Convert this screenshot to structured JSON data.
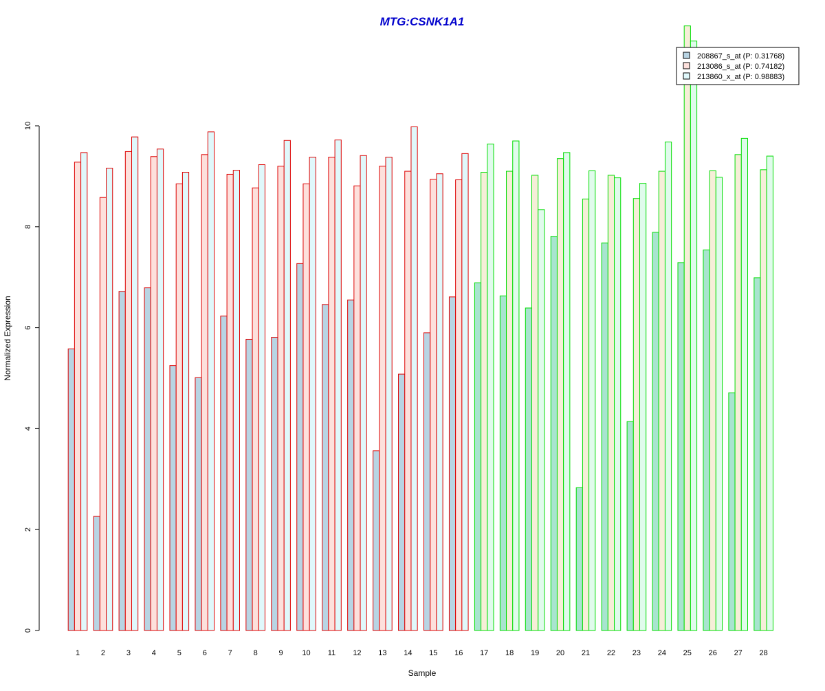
{
  "chart_data": {
    "type": "bar",
    "title": "MTG:CSNK1A1",
    "xlabel": "Sample",
    "ylabel": "Normalized Expression",
    "ylim": [
      0,
      12
    ],
    "yticks": [
      0,
      2,
      4,
      6,
      8,
      10
    ],
    "categories": [
      "1",
      "2",
      "3",
      "4",
      "5",
      "6",
      "7",
      "8",
      "9",
      "10",
      "11",
      "12",
      "13",
      "14",
      "15",
      "16",
      "17",
      "18",
      "19",
      "20",
      "21",
      "22",
      "23",
      "24",
      "25",
      "26",
      "27",
      "28"
    ],
    "series": [
      {
        "name": "208867_s_at (P: 0.31768)",
        "values": [
          5.58,
          2.26,
          6.72,
          6.79,
          5.25,
          5.01,
          6.23,
          5.77,
          5.81,
          7.27,
          6.46,
          6.55,
          3.56,
          5.08,
          5.9,
          6.61,
          6.89,
          6.63,
          6.39,
          7.81,
          2.83,
          7.68,
          4.14,
          7.89,
          7.29,
          7.54,
          4.71,
          6.99
        ]
      },
      {
        "name": "213086_s_at (P: 0.74182)",
        "values": [
          9.28,
          8.58,
          9.49,
          9.39,
          8.85,
          9.43,
          9.04,
          8.77,
          9.2,
          8.85,
          9.38,
          8.81,
          9.2,
          9.1,
          8.94,
          8.93,
          9.08,
          9.1,
          9.02,
          9.35,
          8.55,
          9.02,
          8.56,
          9.1,
          11.98,
          9.11,
          9.43,
          9.13
        ]
      },
      {
        "name": "213860_x_at (P: 0.98883)",
        "values": [
          9.47,
          9.16,
          9.78,
          9.54,
          9.08,
          9.88,
          9.12,
          9.23,
          9.71,
          9.38,
          9.72,
          9.41,
          9.38,
          9.98,
          9.05,
          9.45,
          9.64,
          9.7,
          8.34,
          9.47,
          9.11,
          8.97,
          8.86,
          9.68,
          11.68,
          8.98,
          9.75,
          9.4
        ]
      }
    ],
    "fill_colors": [
      "#b8d4e3",
      "#fde0dc",
      "#e0f8fb"
    ],
    "group_fill_colors": [
      "#b8d4e3",
      "#a8e4cf"
    ],
    "group_fill_colors_alt": [
      "#fde0dc",
      "#f6eed8"
    ],
    "group_fill_colors_alt2": [
      "#e0f8fb",
      "#e0fbec"
    ],
    "group_border_colors": [
      "#dd0000",
      "#00dd00"
    ],
    "group_split_index": 16,
    "legend_position": "top-right",
    "grid": false,
    "title_color": "#0000cc"
  }
}
